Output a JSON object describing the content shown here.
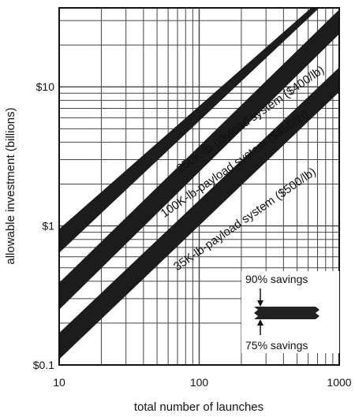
{
  "chart_data": {
    "type": "line",
    "xlabel": "total number of launches",
    "ylabel": "allowable investment (billions)",
    "x_scale": "log",
    "y_scale": "log",
    "xlim": [
      10,
      1000
    ],
    "ylim": [
      0.1,
      37
    ],
    "x_ticks": [
      {
        "value": 10,
        "label": "10"
      },
      {
        "value": 100,
        "label": "100"
      },
      {
        "value": 1000,
        "label": "1000"
      }
    ],
    "y_ticks": [
      {
        "value": 0.1,
        "label": "$0.1"
      },
      {
        "value": 1,
        "label": "$1"
      },
      {
        "value": 10,
        "label": "$10"
      }
    ],
    "grid": true,
    "series": [
      {
        "name": "250K-lb-payload system ($400/lb)",
        "band": true,
        "upper": {
          "x": [
            10,
            630
          ],
          "y": [
            0.95,
            37
          ]
        },
        "lower": {
          "x": [
            10,
            720
          ],
          "y": [
            0.64,
            37
          ]
        }
      },
      {
        "name": "100K-lb-payload system ($450/lb)",
        "band": true,
        "upper": {
          "x": [
            10,
            1000
          ],
          "y": [
            0.39,
            36
          ]
        },
        "lower": {
          "x": [
            10,
            1000
          ],
          "y": [
            0.25,
            24
          ]
        }
      },
      {
        "name": "35K-lb-payload system ($500/lb)",
        "band": true,
        "upper": {
          "x": [
            10,
            1000
          ],
          "y": [
            0.17,
            13.8
          ]
        },
        "lower": {
          "x": [
            10,
            1000
          ],
          "y": [
            0.11,
            9.2
          ]
        }
      }
    ],
    "legend": {
      "placement": "bottom-right",
      "top_label": "90% savings",
      "bottom_label": "75% savings"
    }
  }
}
